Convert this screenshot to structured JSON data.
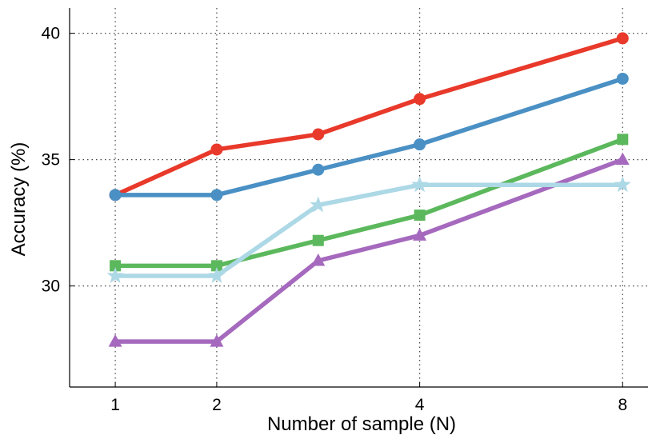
{
  "chart_data": {
    "type": "line",
    "xlabel": "Number of sample (N)",
    "ylabel": "Accuracy (%)",
    "categories": [
      "1",
      "2",
      "",
      "4",
      "",
      "8"
    ],
    "x": [
      1,
      2,
      3,
      4,
      5,
      6
    ],
    "xlim": [
      0.55,
      6.25
    ],
    "ylim": [
      26,
      41
    ],
    "yticks": [
      30,
      35,
      40
    ],
    "grid": true,
    "series": [
      {
        "color": "#e8392a",
        "marker": "circle",
        "x": [
          1,
          2,
          3,
          4,
          6
        ],
        "values": [
          33.6,
          35.4,
          36.0,
          37.4,
          39.8
        ]
      },
      {
        "color": "#4a90c4",
        "marker": "circle",
        "x": [
          1,
          2,
          3,
          4,
          6
        ],
        "values": [
          33.6,
          33.6,
          34.6,
          35.6,
          38.2
        ]
      },
      {
        "color": "#5cb85c",
        "marker": "square",
        "x": [
          1,
          2,
          3,
          4,
          6
        ],
        "values": [
          30.8,
          30.8,
          31.8,
          32.8,
          35.8
        ]
      },
      {
        "color": "#a569bd",
        "marker": "triangle",
        "x": [
          1,
          2,
          3,
          4,
          6
        ],
        "values": [
          27.8,
          27.8,
          31.0,
          32.0,
          35.0
        ]
      },
      {
        "color": "#add8e6",
        "marker": "star",
        "x": [
          1,
          2,
          3,
          4,
          6
        ],
        "values": [
          30.4,
          30.4,
          33.2,
          34.0,
          34.0
        ]
      }
    ]
  }
}
